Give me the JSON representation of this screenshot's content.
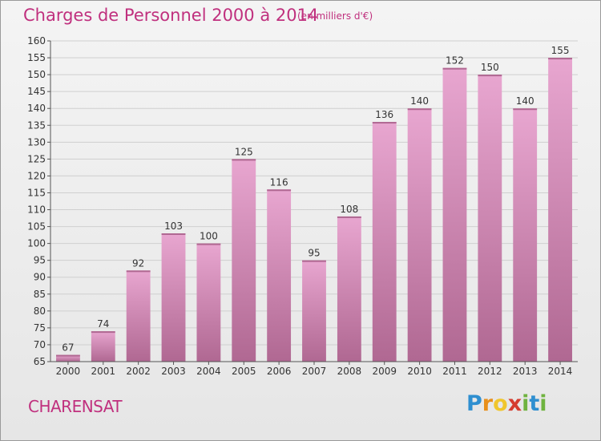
{
  "header": {
    "title": "Charges de Personnel 2000 à 2014",
    "subtitle": "(en milliers d'€)"
  },
  "footer": {
    "region": "CHARENSAT"
  },
  "logo": {
    "letters": [
      "P",
      "r",
      "o",
      "x",
      "i",
      "t",
      "i"
    ],
    "colors": [
      "#2f8fd0",
      "#e88f1a",
      "#f0c62c",
      "#d53c2f",
      "#6fb33f",
      "#2f8fd0",
      "#6fb33f"
    ]
  },
  "colors": {
    "bar_top": "#e8a6d0",
    "bar_bottom": "#b06892",
    "accent": "#c0307e",
    "axis": "#555555",
    "grid": "#cfcfcf",
    "label": "#333333"
  },
  "chart_data": {
    "type": "bar",
    "title": "Charges de Personnel 2000 à 2014",
    "subtitle": "(en milliers d'€)",
    "xlabel": "",
    "ylabel": "",
    "categories": [
      "2000",
      "2001",
      "2002",
      "2003",
      "2004",
      "2005",
      "2006",
      "2007",
      "2008",
      "2009",
      "2010",
      "2011",
      "2012",
      "2013",
      "2014"
    ],
    "values": [
      67,
      74,
      92,
      103,
      100,
      125,
      116,
      95,
      108,
      136,
      140,
      152,
      150,
      140,
      155
    ],
    "ylim": [
      65,
      160
    ],
    "ytick_step": 5,
    "grid": true,
    "data_labels": true
  }
}
